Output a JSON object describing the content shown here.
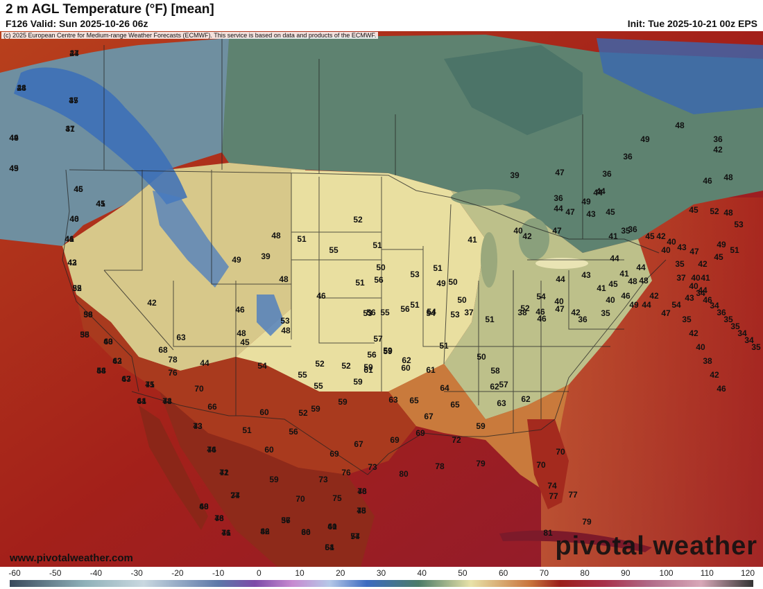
{
  "header": {
    "title": "2 m AGL Temperature (°F) [mean]",
    "valid": "F126 Valid: Sun 2025-10-26 06z",
    "init": "Init: Tue 2025-10-21 00z EPS"
  },
  "map": {
    "copyright": "(c) 2025 European Centre for Medium-range Weather Forecasts (ECMWF). This service is based on data and products of the ECMWF.",
    "website": "www.pivotalweather.com",
    "brand": "pivotal weather",
    "labels": [
      "27",
      "28",
      "35",
      "31",
      "44",
      "45",
      "46",
      "45",
      "46",
      "46",
      "43",
      "52",
      "58",
      "55",
      "63",
      "62",
      "58",
      "63",
      "61",
      "75",
      "73",
      "73",
      "74",
      "71",
      "74",
      "68",
      "78",
      "76",
      "82",
      "56",
      "60",
      "61",
      "61",
      "77",
      "78",
      "78",
      "75",
      "73",
      "70",
      "59",
      "60",
      "51",
      "56",
      "60",
      "66",
      "70",
      "76",
      "69",
      "76",
      "67",
      "73",
      "80",
      "78",
      "79",
      "81",
      "79",
      "77",
      "77",
      "74",
      "70",
      "70",
      "69",
      "72",
      "69",
      "59",
      "62",
      "58",
      "57",
      "65",
      "63",
      "62",
      "64",
      "67",
      "65",
      "61",
      "63",
      "60",
      "59",
      "61",
      "55",
      "59",
      "59",
      "52",
      "54",
      "55",
      "52",
      "52",
      "59",
      "62",
      "59",
      "59",
      "56",
      "54",
      "44",
      "45",
      "63",
      "68",
      "78",
      "42",
      "46",
      "53",
      "48",
      "48",
      "48",
      "46",
      "49",
      "39",
      "48",
      "51",
      "55",
      "52",
      "51",
      "50",
      "51",
      "53",
      "56",
      "55",
      "54",
      "57",
      "56",
      "51",
      "53",
      "56",
      "53",
      "51",
      "50",
      "50",
      "49",
      "51",
      "51",
      "50",
      "52",
      "54",
      "47",
      "42",
      "38",
      "37",
      "41",
      "42",
      "44",
      "40",
      "46",
      "46",
      "36",
      "35",
      "40",
      "45",
      "43",
      "41",
      "44",
      "41",
      "48",
      "46",
      "48",
      "44",
      "42",
      "49",
      "47",
      "54",
      "43",
      "44",
      "41",
      "45",
      "49",
      "51",
      "53",
      "48",
      "52",
      "45",
      "46",
      "48",
      "42",
      "36",
      "48",
      "49",
      "36",
      "36",
      "44",
      "43",
      "47",
      "36",
      "47",
      "39",
      "40",
      "47",
      "44",
      "49",
      "44",
      "45",
      "41",
      "35",
      "36",
      "45",
      "42",
      "40",
      "43",
      "47",
      "42",
      "40",
      "44",
      "40",
      "35",
      "37",
      "40",
      "34",
      "46",
      "34",
      "36",
      "35",
      "35",
      "34",
      "34",
      "35",
      "35",
      "42",
      "40",
      "38",
      "42",
      "46",
      "44",
      "44",
      "47",
      "47",
      "49",
      "49",
      "45",
      "41",
      "40",
      "41",
      "42",
      "35",
      "36",
      "38",
      "40",
      "43",
      "44",
      "47",
      "44",
      "41",
      "44",
      "43",
      "46",
      "42",
      "37",
      "40",
      "46",
      "41",
      "46",
      "37",
      "36",
      "40",
      "54",
      "54",
      "46",
      "45"
    ]
  },
  "legend": {
    "ticks": [
      "-60",
      "-50",
      "-40",
      "-30",
      "-20",
      "-10",
      "0",
      "10",
      "20",
      "30",
      "40",
      "50",
      "60",
      "70",
      "80",
      "90",
      "100",
      "110",
      "120"
    ]
  }
}
